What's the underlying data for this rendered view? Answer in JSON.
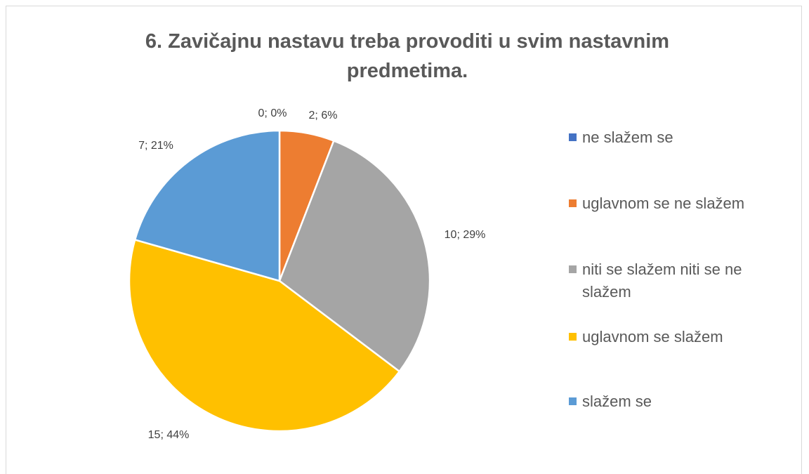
{
  "chart_data": {
    "type": "pie",
    "title": "6. Zavičajnu nastavu treba provoditi u svim nastavnim predmetima.",
    "categories": [
      "ne slažem se",
      "uglavnom se ne slažem",
      "niti se slažem niti se ne slažem",
      "uglavnom se slažem",
      "slažem se"
    ],
    "values": [
      0,
      2,
      10,
      15,
      7
    ],
    "value_labels": [
      "0; 0%",
      "2; 6%",
      "10; 29%",
      "15; 44%",
      "7; 21%"
    ],
    "colors": [
      "#4472c4",
      "#ed7d31",
      "#a5a5a5",
      "#ffc000",
      "#5b9bd5"
    ],
    "legend": "right"
  }
}
